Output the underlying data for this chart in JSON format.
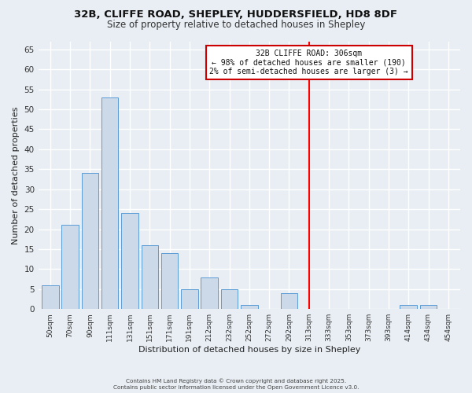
{
  "title_line1": "32B, CLIFFE ROAD, SHEPLEY, HUDDERSFIELD, HD8 8DF",
  "title_line2": "Size of property relative to detached houses in Shepley",
  "xlabel": "Distribution of detached houses by size in Shepley",
  "ylabel": "Number of detached properties",
  "bar_labels": [
    "50sqm",
    "70sqm",
    "90sqm",
    "111sqm",
    "131sqm",
    "151sqm",
    "171sqm",
    "191sqm",
    "212sqm",
    "232sqm",
    "252sqm",
    "272sqm",
    "292sqm",
    "313sqm",
    "333sqm",
    "353sqm",
    "373sqm",
    "393sqm",
    "414sqm",
    "434sqm",
    "454sqm"
  ],
  "bar_values": [
    6,
    21,
    34,
    53,
    24,
    16,
    14,
    5,
    8,
    5,
    1,
    0,
    4,
    0,
    0,
    0,
    0,
    0,
    1,
    1,
    0
  ],
  "bar_color": "#ccd9e8",
  "bar_edge_color": "#5b9bd5",
  "red_line_index": 13,
  "ylim": [
    0,
    67
  ],
  "yticks": [
    0,
    5,
    10,
    15,
    20,
    25,
    30,
    35,
    40,
    45,
    50,
    55,
    60,
    65
  ],
  "annotation_box_title": "32B CLIFFE ROAD: 306sqm",
  "annotation_line1": "← 98% of detached houses are smaller (190)",
  "annotation_line2": "2% of semi-detached houses are larger (3) →",
  "annotation_box_color": "#ffffff",
  "annotation_box_edge_color": "#cc0000",
  "footer_line1": "Contains HM Land Registry data © Crown copyright and database right 2025.",
  "footer_line2": "Contains public sector information licensed under the Open Government Licence v3.0.",
  "bg_color": "#e8eef4",
  "grid_color": "#ffffff",
  "title_fontsize": 9.5,
  "subtitle_fontsize": 8.5
}
